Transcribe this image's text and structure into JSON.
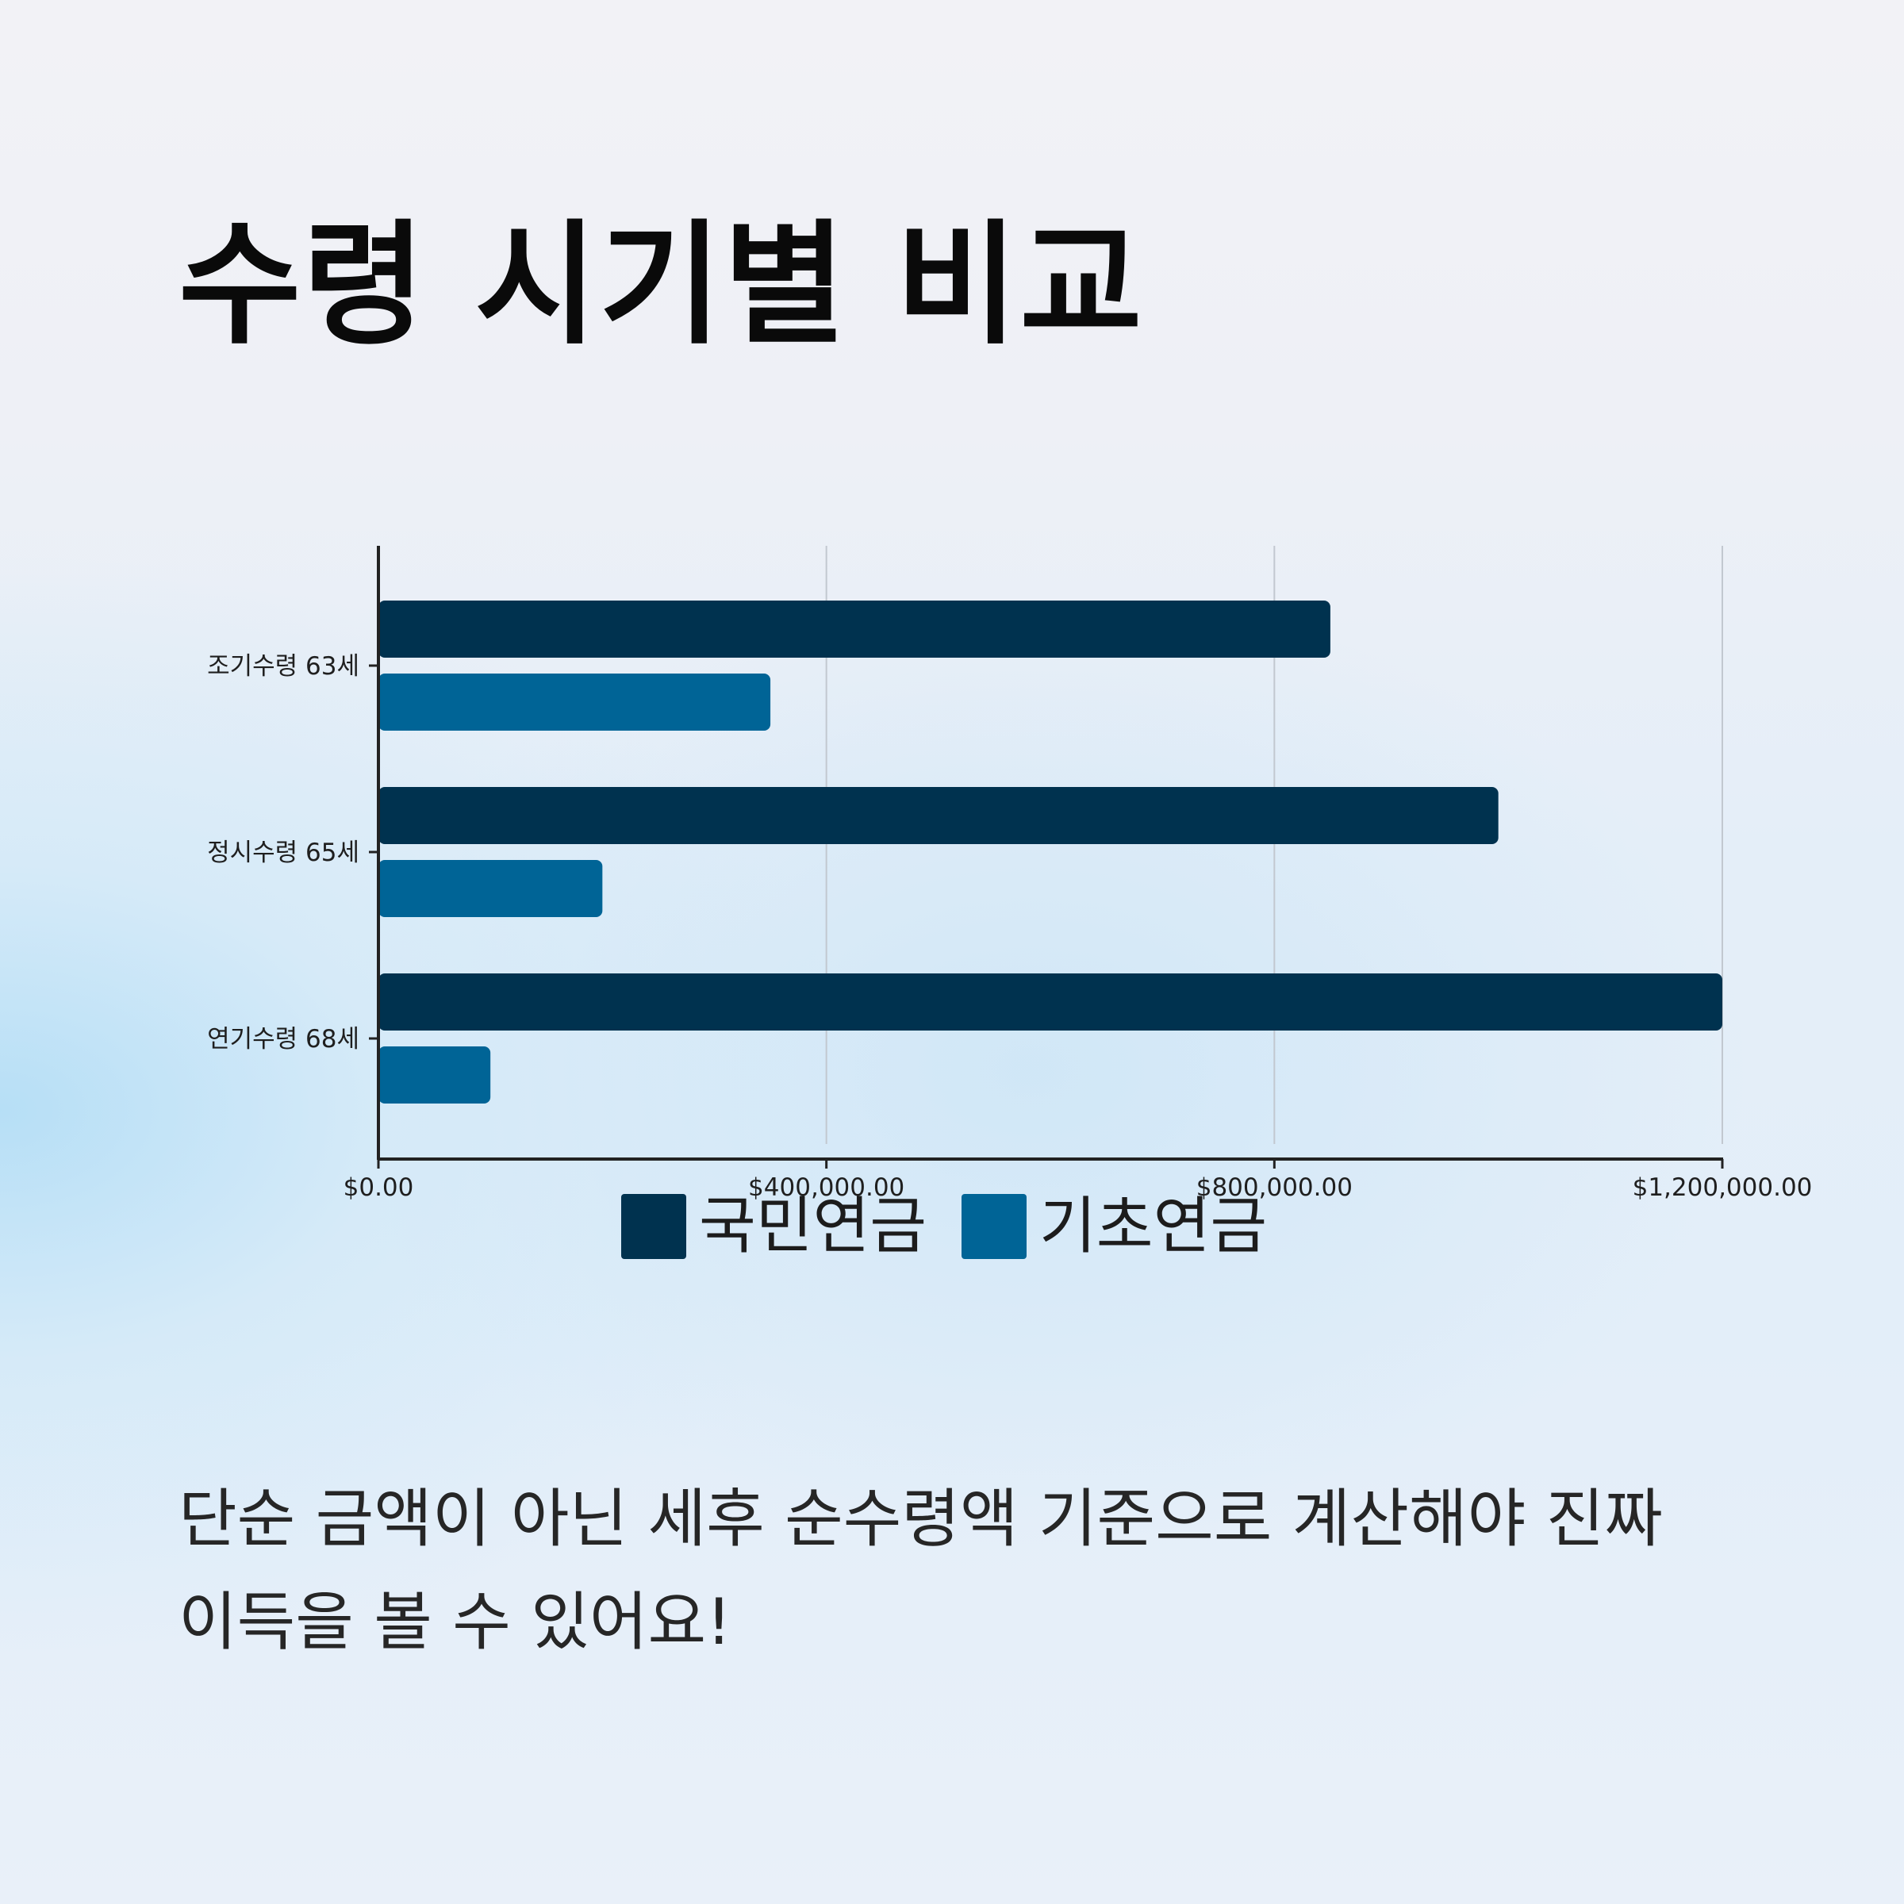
{
  "page": {
    "title": "수령 시기별 비교",
    "caption_line1": "단순 금액이 아닌 세후 순수령액 기준으로 계산해야 진짜",
    "caption_line2": "이득을 볼 수 있어요!"
  },
  "colors": {
    "national_pension": "#00324f",
    "basic_pension": "#006496",
    "axis": "#222222",
    "grid": "#c2c8d0"
  },
  "chart_data": {
    "type": "bar",
    "orientation": "horizontal",
    "categories": [
      "조기수령 63세",
      "정시수령 65세",
      "연기수령 68세"
    ],
    "series": [
      {
        "name": "국민연금",
        "color": "#00324f",
        "values": [
          850000,
          1000000,
          1200000
        ]
      },
      {
        "name": "기초연금",
        "color": "#006496",
        "values": [
          350000,
          200000,
          100000
        ]
      }
    ],
    "x_ticks": [
      0,
      400000,
      800000,
      1200000
    ],
    "x_tick_labels": [
      "$0.00",
      "$400,000.00",
      "$800,000.00",
      "$1,200,000.00"
    ],
    "xlim": [
      0,
      1200000
    ],
    "grid": "vertical",
    "legend_position": "bottom-center",
    "title": "",
    "xlabel": "",
    "ylabel": ""
  }
}
